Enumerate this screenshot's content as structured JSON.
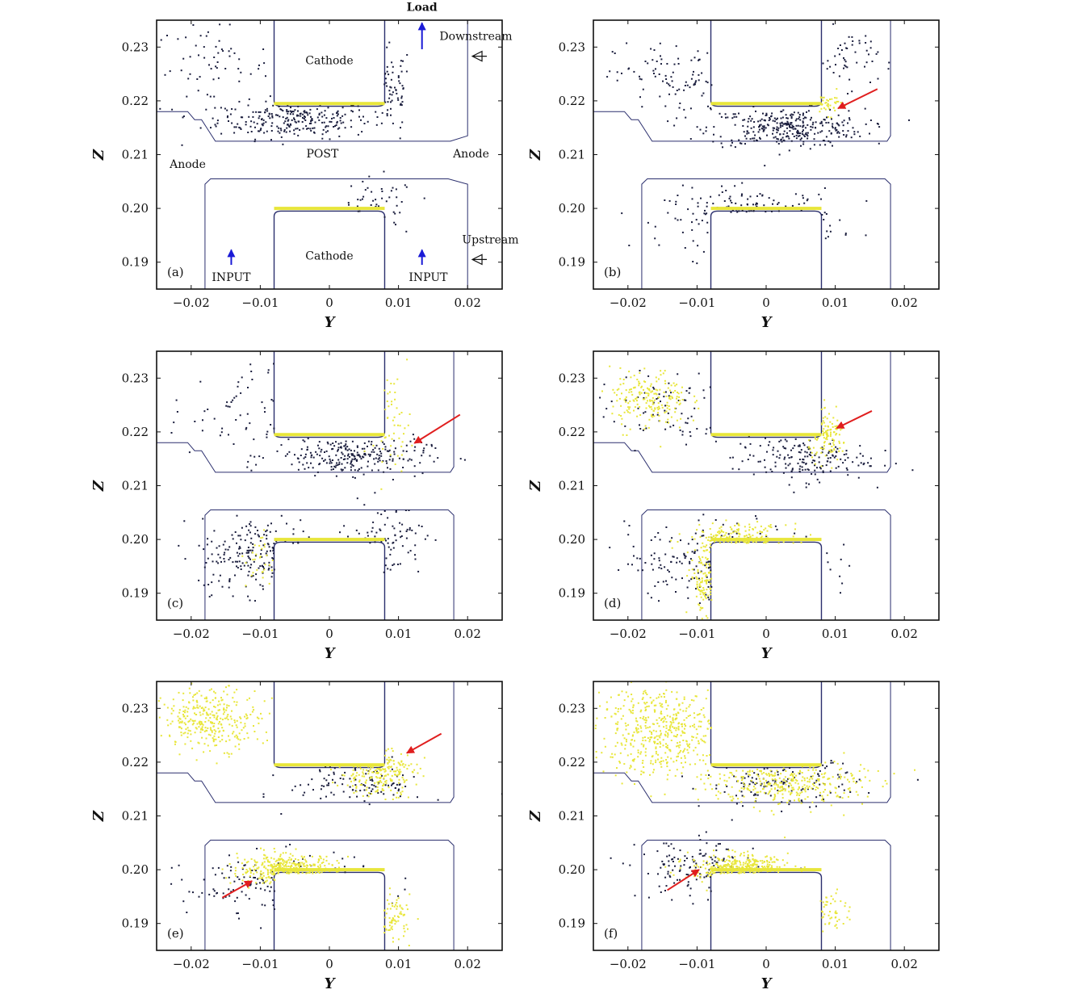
{
  "figure": {
    "colors": {
      "background": "#ffffff",
      "frame": "#111111",
      "geometry": "#2b2f6e",
      "electron_dark": "#1a1d3d",
      "electron_yellow": "#e8e63a",
      "arrow_red": "#e01e1e",
      "arrow_blue": "#1a1ad6"
    }
  },
  "chart_data": [
    {
      "type": "scatter",
      "panel": "(a)",
      "title": "",
      "xlabel": "Y",
      "ylabel": "Z",
      "xlim": [
        -0.025,
        0.025
      ],
      "ylim": [
        0.185,
        0.235
      ],
      "xticks": [
        -0.02,
        -0.01,
        0,
        0.01,
        0.02
      ],
      "xtick_labels": [
        "−0.02",
        "−0.01",
        "0",
        "0.01",
        "0.02"
      ],
      "yticks": [
        0.19,
        0.2,
        0.21,
        0.22,
        0.23
      ],
      "ytick_labels": [
        "0.19",
        "0.20",
        "0.21",
        "0.22",
        "0.23"
      ],
      "grid": false,
      "dark_regions": [
        {
          "yc": -0.005,
          "zc": 0.2165,
          "sy": 0.008,
          "sz": 0.0025,
          "n": 260
        },
        {
          "yc": -0.017,
          "zc": 0.226,
          "sy": 0.006,
          "sz": 0.006,
          "n": 70
        },
        {
          "yc": 0.009,
          "zc": 0.222,
          "sy": 0.002,
          "sz": 0.006,
          "n": 70
        },
        {
          "yc": 0.007,
          "zc": 0.2,
          "sy": 0.004,
          "sz": 0.004,
          "n": 60
        }
      ],
      "yellow_regions": [],
      "arrows": [],
      "annotations": [
        {
          "text": "Cathode",
          "y": 0.0,
          "z": 0.2268
        },
        {
          "text": "POST",
          "y": -0.001,
          "z": 0.2095
        },
        {
          "text": "Anode",
          "y": -0.0205,
          "z": 0.2075
        },
        {
          "text": "Anode",
          "y": 0.0205,
          "z": 0.2095
        },
        {
          "text": "Cathode",
          "y": 0.0,
          "z": 0.1905
        },
        {
          "text": "INPUT",
          "y": -0.0142,
          "z": 0.1865
        },
        {
          "text": "INPUT",
          "y": 0.0143,
          "z": 0.1865
        },
        {
          "text": "Load",
          "y": 0.0134,
          "z": 0.2367
        },
        {
          "text": "Downstream",
          "y": 0.0212,
          "z": 0.2313
        },
        {
          "text": "Upstream",
          "y": 0.0233,
          "z": 0.1935
        }
      ]
    },
    {
      "type": "scatter",
      "panel": "(b)",
      "title": "",
      "xlabel": "Y",
      "ylabel": "Z",
      "xlim": [
        -0.025,
        0.025
      ],
      "ylim": [
        0.185,
        0.235
      ],
      "xticks": [
        -0.02,
        -0.01,
        0,
        0.01,
        0.02
      ],
      "xtick_labels": [
        "−0.02",
        "−0.01",
        "0",
        "0.01",
        "0.02"
      ],
      "yticks": [
        0.19,
        0.2,
        0.21,
        0.22,
        0.23
      ],
      "ytick_labels": [
        "0.19",
        "0.20",
        "0.21",
        "0.22",
        "0.23"
      ],
      "grid": false,
      "dark_regions": [
        {
          "yc": 0.003,
          "zc": 0.215,
          "sy": 0.008,
          "sz": 0.0025,
          "n": 320
        },
        {
          "yc": -0.012,
          "zc": 0.224,
          "sy": 0.007,
          "sz": 0.005,
          "n": 120
        },
        {
          "yc": -0.002,
          "zc": 0.198,
          "sy": 0.009,
          "sz": 0.004,
          "n": 260
        },
        {
          "yc": 0.012,
          "zc": 0.228,
          "sy": 0.003,
          "sz": 0.004,
          "n": 50
        }
      ],
      "yellow_regions": [
        {
          "yc": 0.009,
          "zc": 0.2195,
          "sy": 0.0015,
          "sz": 0.0015,
          "n": 40
        }
      ],
      "arrows": [
        {
          "from": [
            0.0161,
            0.2222
          ],
          "to": [
            0.0104,
            0.2186
          ]
        }
      ],
      "annotations": []
    },
    {
      "type": "scatter",
      "panel": "(c)",
      "title": "",
      "xlabel": "Y",
      "ylabel": "Z",
      "xlim": [
        -0.025,
        0.025
      ],
      "ylim": [
        0.185,
        0.235
      ],
      "xticks": [
        -0.02,
        -0.01,
        0,
        0.01,
        0.02
      ],
      "xtick_labels": [
        "−0.02",
        "−0.01",
        "0",
        "0.01",
        "0.02"
      ],
      "yticks": [
        0.19,
        0.2,
        0.21,
        0.22,
        0.23
      ],
      "ytick_labels": [
        "0.19",
        "0.20",
        "0.21",
        "0.22",
        "0.23"
      ],
      "grid": false,
      "dark_regions": [
        {
          "yc": 0.003,
          "zc": 0.2155,
          "sy": 0.008,
          "sz": 0.0025,
          "n": 260
        },
        {
          "yc": -0.012,
          "zc": 0.224,
          "sy": 0.008,
          "sz": 0.006,
          "n": 80
        },
        {
          "yc": -0.009,
          "zc": 0.197,
          "sy": 0.007,
          "sz": 0.005,
          "n": 280
        },
        {
          "yc": 0.008,
          "zc": 0.2,
          "sy": 0.004,
          "sz": 0.005,
          "n": 100
        }
      ],
      "yellow_regions": [
        {
          "yc": 0.009,
          "zc": 0.222,
          "sy": 0.002,
          "sz": 0.006,
          "n": 60
        },
        {
          "yc": -0.01,
          "zc": 0.196,
          "sy": 0.0015,
          "sz": 0.004,
          "n": 30
        }
      ],
      "arrows": [
        {
          "from": [
            0.0189,
            0.2232
          ],
          "to": [
            0.0123,
            0.2179
          ]
        }
      ],
      "annotations": []
    },
    {
      "type": "scatter",
      "panel": "(d)",
      "title": "",
      "xlabel": "Y",
      "ylabel": "Z",
      "xlim": [
        -0.025,
        0.025
      ],
      "ylim": [
        0.185,
        0.235
      ],
      "xticks": [
        -0.02,
        -0.01,
        0,
        0.01,
        0.02
      ],
      "xtick_labels": [
        "−0.02",
        "−0.01",
        "0",
        "0.01",
        "0.02"
      ],
      "yticks": [
        0.19,
        0.2,
        0.21,
        0.22,
        0.23
      ],
      "ytick_labels": [
        "0.19",
        "0.20",
        "0.21",
        "0.22",
        "0.23"
      ],
      "grid": false,
      "dark_regions": [
        {
          "yc": 0.005,
          "zc": 0.215,
          "sy": 0.007,
          "sz": 0.003,
          "n": 180
        },
        {
          "yc": -0.015,
          "zc": 0.224,
          "sy": 0.007,
          "sz": 0.005,
          "n": 80
        },
        {
          "yc": -0.006,
          "zc": 0.196,
          "sy": 0.01,
          "sz": 0.005,
          "n": 260
        }
      ],
      "yellow_regions": [
        {
          "yc": -0.017,
          "zc": 0.226,
          "sy": 0.004,
          "sz": 0.004,
          "n": 200
        },
        {
          "yc": 0.009,
          "zc": 0.219,
          "sy": 0.002,
          "sz": 0.003,
          "n": 120
        },
        {
          "yc": -0.004,
          "zc": 0.2,
          "sy": 0.005,
          "sz": 0.002,
          "n": 240
        },
        {
          "yc": -0.009,
          "zc": 0.192,
          "sy": 0.0015,
          "sz": 0.004,
          "n": 120
        }
      ],
      "arrows": [
        {
          "from": [
            0.0153,
            0.2239
          ],
          "to": [
            0.0102,
            0.2207
          ]
        }
      ],
      "annotations": []
    },
    {
      "type": "scatter",
      "panel": "(e)",
      "title": "",
      "xlabel": "Y",
      "ylabel": "Z",
      "xlim": [
        -0.025,
        0.025
      ],
      "ylim": [
        0.185,
        0.235
      ],
      "xticks": [
        -0.02,
        -0.01,
        0,
        0.01,
        0.02
      ],
      "xtick_labels": [
        "−0.02",
        "−0.01",
        "0",
        "0.01",
        "0.02"
      ],
      "yticks": [
        0.19,
        0.2,
        0.21,
        0.22,
        0.23
      ],
      "ytick_labels": [
        "0.19",
        "0.20",
        "0.21",
        "0.22",
        "0.23"
      ],
      "grid": false,
      "dark_regions": [
        {
          "yc": 0.004,
          "zc": 0.216,
          "sy": 0.007,
          "sz": 0.003,
          "n": 110
        },
        {
          "yc": -0.007,
          "zc": 0.197,
          "sy": 0.01,
          "sz": 0.004,
          "n": 200
        }
      ],
      "yellow_regions": [
        {
          "yc": -0.017,
          "zc": 0.228,
          "sy": 0.005,
          "sz": 0.004,
          "n": 320
        },
        {
          "yc": 0.007,
          "zc": 0.218,
          "sy": 0.004,
          "sz": 0.003,
          "n": 240
        },
        {
          "yc": -0.006,
          "zc": 0.2,
          "sy": 0.005,
          "sz": 0.002,
          "n": 420
        },
        {
          "yc": 0.009,
          "zc": 0.191,
          "sy": 0.002,
          "sz": 0.003,
          "n": 100
        }
      ],
      "arrows": [
        {
          "from": [
            0.0162,
            0.2253
          ],
          "to": [
            0.0112,
            0.2217
          ]
        },
        {
          "from": [
            -0.0155,
            0.1948
          ],
          "to": [
            -0.0112,
            0.1979
          ]
        }
      ],
      "annotations": []
    },
    {
      "type": "scatter",
      "panel": "(f)",
      "title": "",
      "xlabel": "Y",
      "ylabel": "Z",
      "xlim": [
        -0.025,
        0.025
      ],
      "ylim": [
        0.185,
        0.235
      ],
      "xticks": [
        -0.02,
        -0.01,
        0,
        0.01,
        0.02
      ],
      "xtick_labels": [
        "−0.02",
        "−0.01",
        "0",
        "0.01",
        "0.02"
      ],
      "yticks": [
        0.19,
        0.2,
        0.21,
        0.22,
        0.23
      ],
      "ytick_labels": [
        "0.19",
        "0.20",
        "0.21",
        "0.22",
        "0.23"
      ],
      "grid": false,
      "dark_regions": [
        {
          "yc": 0.002,
          "zc": 0.216,
          "sy": 0.008,
          "sz": 0.003,
          "n": 130
        },
        {
          "yc": -0.01,
          "zc": 0.2,
          "sy": 0.006,
          "sz": 0.004,
          "n": 140
        }
      ],
      "yellow_regions": [
        {
          "yc": -0.015,
          "zc": 0.226,
          "sy": 0.007,
          "sz": 0.006,
          "n": 520
        },
        {
          "yc": 0.003,
          "zc": 0.216,
          "sy": 0.008,
          "sz": 0.003,
          "n": 340
        },
        {
          "yc": -0.004,
          "zc": 0.2,
          "sy": 0.005,
          "sz": 0.002,
          "n": 420
        },
        {
          "yc": 0.009,
          "zc": 0.192,
          "sy": 0.002,
          "sz": 0.003,
          "n": 60
        }
      ],
      "arrows": [
        {
          "from": [
            -0.0143,
            0.1962
          ],
          "to": [
            -0.0097,
            0.2
          ]
        }
      ],
      "annotations": []
    }
  ]
}
